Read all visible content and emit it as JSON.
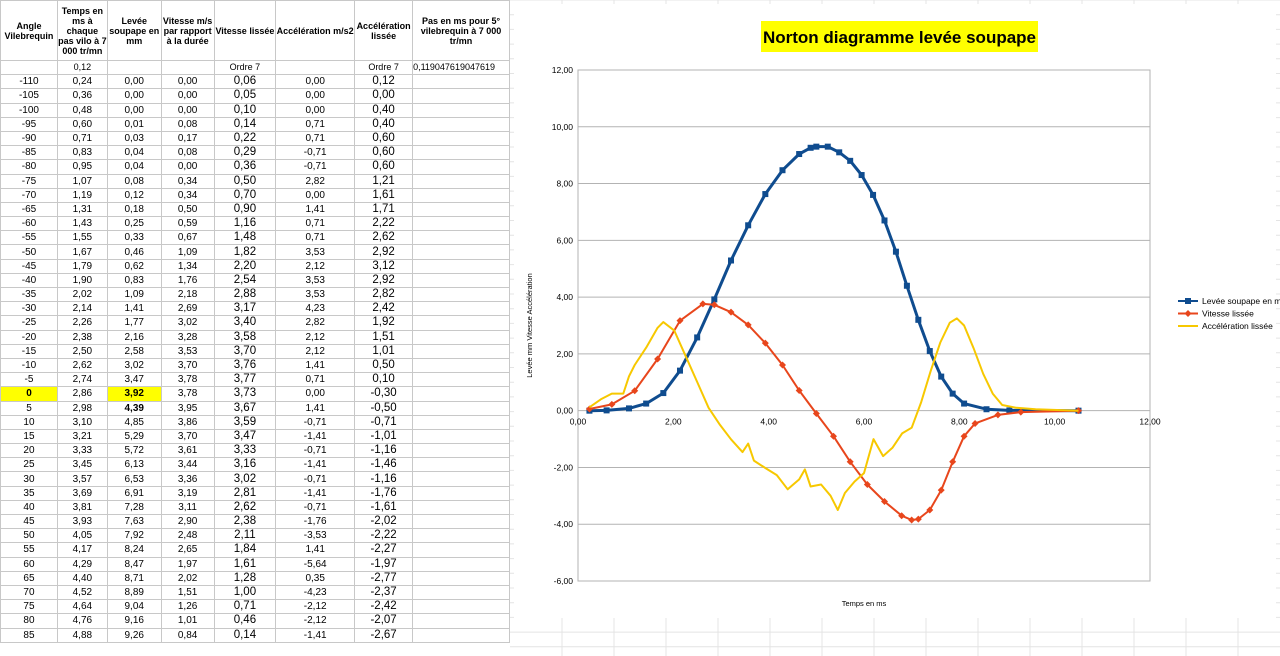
{
  "sheet": {
    "headers": [
      "Angle Vilebrequin",
      "Temps en ms à chaque pas vilo à 7 000 tr/mn",
      "Levée soupape en mm",
      "Vitesse m/s par rapport à la durée",
      "Vitesse lissée",
      "Accélération m/s2",
      "Accélération lissée",
      "Pas en ms pour  5° vilebrequin  à 7 000 tr/mn"
    ],
    "subrow": [
      "",
      "0,12",
      "",
      "",
      "Ordre 7",
      "",
      "Ordre 7",
      "0,119047619047619"
    ],
    "rows": [
      [
        "-110",
        "0,24",
        "0,00",
        "0,00",
        "0,06",
        "0,00",
        "0,12"
      ],
      [
        "-105",
        "0,36",
        "0,00",
        "0,00",
        "0,05",
        "0,00",
        "0,00"
      ],
      [
        "-100",
        "0,48",
        "0,00",
        "0,00",
        "0,10",
        "0,00",
        "0,40"
      ],
      [
        "-95",
        "0,60",
        "0,01",
        "0,08",
        "0,14",
        "0,71",
        "0,40"
      ],
      [
        "-90",
        "0,71",
        "0,03",
        "0,17",
        "0,22",
        "0,71",
        "0,60"
      ],
      [
        "-85",
        "0,83",
        "0,04",
        "0,08",
        "0,29",
        "-0,71",
        "0,60"
      ],
      [
        "-80",
        "0,95",
        "0,04",
        "0,00",
        "0,36",
        "-0,71",
        "0,60"
      ],
      [
        "-75",
        "1,07",
        "0,08",
        "0,34",
        "0,50",
        "2,82",
        "1,21"
      ],
      [
        "-70",
        "1,19",
        "0,12",
        "0,34",
        "0,70",
        "0,00",
        "1,61"
      ],
      [
        "-65",
        "1,31",
        "0,18",
        "0,50",
        "0,90",
        "1,41",
        "1,71"
      ],
      [
        "-60",
        "1,43",
        "0,25",
        "0,59",
        "1,16",
        "0,71",
        "2,22"
      ],
      [
        "-55",
        "1,55",
        "0,33",
        "0,67",
        "1,48",
        "0,71",
        "2,62"
      ],
      [
        "-50",
        "1,67",
        "0,46",
        "1,09",
        "1,82",
        "3,53",
        "2,92"
      ],
      [
        "-45",
        "1,79",
        "0,62",
        "1,34",
        "2,20",
        "2,12",
        "3,12"
      ],
      [
        "-40",
        "1,90",
        "0,83",
        "1,76",
        "2,54",
        "3,53",
        "2,92"
      ],
      [
        "-35",
        "2,02",
        "1,09",
        "2,18",
        "2,88",
        "3,53",
        "2,82"
      ],
      [
        "-30",
        "2,14",
        "1,41",
        "2,69",
        "3,17",
        "4,23",
        "2,42"
      ],
      [
        "-25",
        "2,26",
        "1,77",
        "3,02",
        "3,40",
        "2,82",
        "1,92"
      ],
      [
        "-20",
        "2,38",
        "2,16",
        "3,28",
        "3,58",
        "2,12",
        "1,51"
      ],
      [
        "-15",
        "2,50",
        "2,58",
        "3,53",
        "3,70",
        "2,12",
        "1,01"
      ],
      [
        "-10",
        "2,62",
        "3,02",
        "3,70",
        "3,76",
        "1,41",
        "0,50"
      ],
      [
        "-5",
        "2,74",
        "3,47",
        "3,78",
        "3,77",
        "0,71",
        "0,10"
      ],
      [
        "0",
        "2,86",
        "3,92",
        "3,78",
        "3,73",
        "0,00",
        "-0,30"
      ],
      [
        "5",
        "2,98",
        "4,39",
        "3,95",
        "3,67",
        "1,41",
        "-0,50"
      ],
      [
        "10",
        "3,10",
        "4,85",
        "3,86",
        "3,59",
        "-0,71",
        "-0,71"
      ],
      [
        "15",
        "3,21",
        "5,29",
        "3,70",
        "3,47",
        "-1,41",
        "-1,01"
      ],
      [
        "20",
        "3,33",
        "5,72",
        "3,61",
        "3,33",
        "-0,71",
        "-1,16"
      ],
      [
        "25",
        "3,45",
        "6,13",
        "3,44",
        "3,16",
        "-1,41",
        "-1,46"
      ],
      [
        "30",
        "3,57",
        "6,53",
        "3,36",
        "3,02",
        "-0,71",
        "-1,16"
      ],
      [
        "35",
        "3,69",
        "6,91",
        "3,19",
        "2,81",
        "-1,41",
        "-1,76"
      ],
      [
        "40",
        "3,81",
        "7,28",
        "3,11",
        "2,62",
        "-0,71",
        "-1,61"
      ],
      [
        "45",
        "3,93",
        "7,63",
        "2,90",
        "2,38",
        "-1,76",
        "-2,02"
      ],
      [
        "50",
        "4,05",
        "7,92",
        "2,48",
        "2,11",
        "-3,53",
        "-2,22"
      ],
      [
        "55",
        "4,17",
        "8,24",
        "2,65",
        "1,84",
        "1,41",
        "-2,27"
      ],
      [
        "60",
        "4,29",
        "8,47",
        "1,97",
        "1,61",
        "-5,64",
        "-1,97"
      ],
      [
        "65",
        "4,40",
        "8,71",
        "2,02",
        "1,28",
        "0,35",
        "-2,77"
      ],
      [
        "70",
        "4,52",
        "8,89",
        "1,51",
        "1,00",
        "-4,23",
        "-2,37"
      ],
      [
        "75",
        "4,64",
        "9,04",
        "1,26",
        "0,71",
        "-2,12",
        "-2,42"
      ],
      [
        "80",
        "4,76",
        "9,16",
        "1,01",
        "0,46",
        "-2,12",
        "-2,07"
      ],
      [
        "85",
        "4,88",
        "9,26",
        "0,84",
        "0,14",
        "-1,41",
        "-2,67"
      ]
    ],
    "highlight_color": "#ffff00"
  },
  "chart_data": {
    "type": "line",
    "title": "Norton diagramme levée soupape",
    "title_bg": "#ffff00",
    "xlabel": "Temps en ms",
    "ylabel": "Levée mm Vitesse Accélération",
    "xlim": [
      0,
      12
    ],
    "ylim": [
      -6,
      12
    ],
    "x_ticks": [
      "0,00",
      "2,00",
      "4,00",
      "6,00",
      "8,00",
      "10,00",
      "12,00"
    ],
    "y_ticks": [
      "12,00",
      "10,00",
      "8,00",
      "6,00",
      "4,00",
      "2,00",
      "0,00",
      "-2,00",
      "-4,00",
      "-6,00"
    ],
    "legend_position": "right",
    "series": [
      {
        "name": "Levée soupape en mm",
        "color": "#0f4c8f",
        "marker": "square",
        "points": [
          [
            0.24,
            0
          ],
          [
            0.6,
            0.01
          ],
          [
            1.07,
            0.08
          ],
          [
            1.43,
            0.25
          ],
          [
            1.79,
            0.62
          ],
          [
            2.14,
            1.41
          ],
          [
            2.5,
            2.58
          ],
          [
            2.86,
            3.92
          ],
          [
            3.21,
            5.29
          ],
          [
            3.57,
            6.53
          ],
          [
            3.93,
            7.63
          ],
          [
            4.29,
            8.47
          ],
          [
            4.64,
            9.04
          ],
          [
            4.88,
            9.26
          ],
          [
            5.0,
            9.3
          ],
          [
            5.24,
            9.3
          ],
          [
            5.48,
            9.1
          ],
          [
            5.71,
            8.8
          ],
          [
            5.95,
            8.3
          ],
          [
            6.19,
            7.6
          ],
          [
            6.43,
            6.7
          ],
          [
            6.67,
            5.6
          ],
          [
            6.9,
            4.4
          ],
          [
            7.14,
            3.2
          ],
          [
            7.38,
            2.1
          ],
          [
            7.62,
            1.2
          ],
          [
            7.86,
            0.6
          ],
          [
            8.1,
            0.25
          ],
          [
            8.57,
            0.05
          ],
          [
            9.05,
            0.01
          ],
          [
            10.5,
            0
          ]
        ]
      },
      {
        "name": "Vitesse lissée",
        "color": "#e8461c",
        "marker": "diamond",
        "points": [
          [
            0.24,
            0.06
          ],
          [
            0.71,
            0.22
          ],
          [
            1.19,
            0.7
          ],
          [
            1.67,
            1.82
          ],
          [
            2.14,
            3.17
          ],
          [
            2.62,
            3.76
          ],
          [
            2.86,
            3.73
          ],
          [
            3.21,
            3.47
          ],
          [
            3.57,
            3.02
          ],
          [
            3.93,
            2.38
          ],
          [
            4.29,
            1.61
          ],
          [
            4.64,
            0.71
          ],
          [
            5.0,
            -0.1
          ],
          [
            5.36,
            -0.9
          ],
          [
            5.71,
            -1.8
          ],
          [
            6.07,
            -2.6
          ],
          [
            6.43,
            -3.2
          ],
          [
            6.79,
            -3.7
          ],
          [
            7.0,
            -3.85
          ],
          [
            7.14,
            -3.82
          ],
          [
            7.38,
            -3.5
          ],
          [
            7.62,
            -2.8
          ],
          [
            7.86,
            -1.8
          ],
          [
            8.1,
            -0.9
          ],
          [
            8.33,
            -0.45
          ],
          [
            8.81,
            -0.15
          ],
          [
            9.29,
            -0.05
          ],
          [
            10.5,
            0
          ]
        ]
      },
      {
        "name": "Accélération lissée",
        "color": "#f7c800",
        "marker": "none",
        "points": [
          [
            0.24,
            0.12
          ],
          [
            0.48,
            0.4
          ],
          [
            0.71,
            0.6
          ],
          [
            0.95,
            0.6
          ],
          [
            1.07,
            1.21
          ],
          [
            1.19,
            1.61
          ],
          [
            1.43,
            2.22
          ],
          [
            1.67,
            2.92
          ],
          [
            1.79,
            3.12
          ],
          [
            2.02,
            2.82
          ],
          [
            2.26,
            1.92
          ],
          [
            2.5,
            1.01
          ],
          [
            2.74,
            0.1
          ],
          [
            2.98,
            -0.5
          ],
          [
            3.21,
            -1.01
          ],
          [
            3.45,
            -1.46
          ],
          [
            3.57,
            -1.16
          ],
          [
            3.69,
            -1.76
          ],
          [
            3.93,
            -2.02
          ],
          [
            4.17,
            -2.27
          ],
          [
            4.4,
            -2.77
          ],
          [
            4.64,
            -2.42
          ],
          [
            4.76,
            -2.07
          ],
          [
            4.88,
            -2.67
          ],
          [
            5.1,
            -2.6
          ],
          [
            5.3,
            -3.0
          ],
          [
            5.45,
            -3.5
          ],
          [
            5.6,
            -2.9
          ],
          [
            5.8,
            -2.5
          ],
          [
            6.0,
            -2.2
          ],
          [
            6.2,
            -1.0
          ],
          [
            6.4,
            -1.6
          ],
          [
            6.6,
            -1.3
          ],
          [
            6.8,
            -0.8
          ],
          [
            7.0,
            -0.6
          ],
          [
            7.2,
            0.3
          ],
          [
            7.4,
            1.4
          ],
          [
            7.6,
            2.4
          ],
          [
            7.8,
            3.1
          ],
          [
            7.95,
            3.25
          ],
          [
            8.1,
            3.0
          ],
          [
            8.3,
            2.2
          ],
          [
            8.5,
            1.3
          ],
          [
            8.7,
            0.6
          ],
          [
            8.9,
            0.2
          ],
          [
            9.2,
            0.1
          ],
          [
            9.6,
            0.05
          ],
          [
            10.5,
            0
          ]
        ]
      }
    ]
  }
}
